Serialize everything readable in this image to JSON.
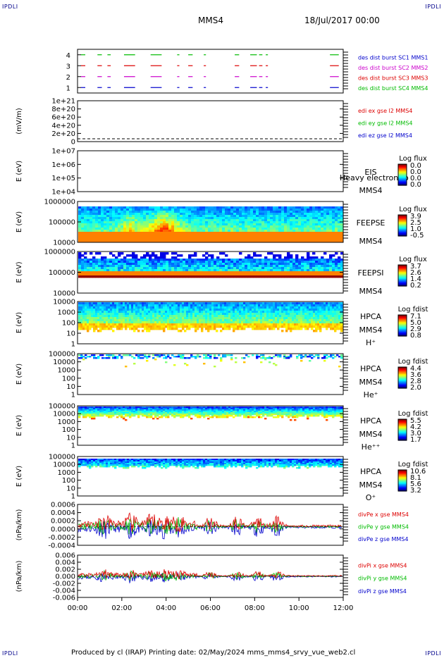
{
  "corner_label": "IPDLI",
  "title": "MMS4",
  "datetime": "18/Jul/2017 00:00",
  "footer": "Produced by cl (IRAP)   Printing date: 02/May/2024   mms_mms4_srvy_vue_web2.cl",
  "colors": {
    "red": "#dd0000",
    "green": "#00bb00",
    "blue": "#0000cc",
    "magenta": "#cc00cc"
  },
  "chart_data": [
    {
      "id": "burst",
      "type": "line",
      "yticks": [
        "1",
        "2",
        "3",
        "4"
      ],
      "ylim": [
        0.5,
        4.5
      ],
      "labels": [
        {
          "text": "des dist burst SC1 MMS1",
          "color": "#0000cc"
        },
        {
          "text": "des dist burst SC2 MMS2",
          "color": "#cc00cc"
        },
        {
          "text": "des dist burst SC3 MMS3",
          "color": "#dd0000"
        },
        {
          "text": "des dist burst SC4 MMS4",
          "color": "#00bb00"
        }
      ],
      "segments_hours": [
        [
          0.15,
          0.35
        ],
        [
          0.9,
          1.1
        ],
        [
          1.35,
          1.5
        ],
        [
          2.1,
          2.6
        ],
        [
          3.3,
          3.8
        ],
        [
          4.5,
          4.6
        ],
        [
          5.0,
          5.2
        ],
        [
          5.7,
          5.8
        ],
        [
          7.1,
          7.3
        ],
        [
          7.8,
          8.1
        ],
        [
          8.2,
          8.35
        ],
        [
          8.5,
          8.6
        ],
        [
          11.4,
          11.8
        ]
      ]
    },
    {
      "id": "edi",
      "type": "line",
      "ylabel": "(mV/m)",
      "yticks": [
        "0",
        "2e+20",
        "4e+20",
        "6e+20",
        "8e+20",
        "1e+21"
      ],
      "ylim": [
        0,
        1e+21
      ],
      "labels": [
        {
          "text": "edi ex gse l2 MMS4",
          "color": "#dd0000"
        },
        {
          "text": "edi ey gse l2 MMS4",
          "color": "#00bb00"
        },
        {
          "text": "edi ez gse l2 MMS4",
          "color": "#0000cc"
        }
      ]
    },
    {
      "id": "eis",
      "type": "heatmap",
      "ylabel": "E (eV)",
      "yticks": [
        "1e+04",
        "1e+05",
        "1e+06",
        "1e+07"
      ],
      "labels": [
        {
          "text": "EIS"
        },
        {
          "text": "MMS4"
        }
      ],
      "overlay": "Heavy electron to",
      "colorbar": {
        "title": "Log flux",
        "ticks": [
          "0.0",
          "0.0",
          "0.0",
          "0.0"
        ]
      }
    },
    {
      "id": "feepse",
      "type": "heatmap",
      "ylabel": "E (eV)",
      "yticks": [
        "10000",
        "100000",
        "1000000"
      ],
      "labels": [
        {
          "text": "FEEPSE"
        },
        {
          "text": "MMS4"
        }
      ],
      "colorbar": {
        "title": "Log flux",
        "ticks": [
          "3.9",
          "2.5",
          "1.0",
          "-0.5"
        ]
      }
    },
    {
      "id": "feepsi",
      "type": "heatmap",
      "ylabel": "E (eV)",
      "yticks": [
        "10000",
        "100000",
        "1000000"
      ],
      "labels": [
        {
          "text": "FEEPSI"
        },
        {
          "text": "MMS4"
        }
      ],
      "colorbar": {
        "title": "Log flux",
        "ticks": [
          "3.7",
          "2.6",
          "1.4",
          "0.2"
        ]
      }
    },
    {
      "id": "hpca_h",
      "type": "heatmap",
      "ylabel": "E (eV)",
      "yticks": [
        "1",
        "10",
        "100",
        "1000",
        "10000"
      ],
      "labels": [
        {
          "text": "HPCA"
        },
        {
          "text": "MMS4"
        },
        {
          "text": "H⁺"
        }
      ],
      "colorbar": {
        "title": "Log fdist",
        "ticks": [
          "7.1",
          "5.0",
          "2.9",
          "0.8"
        ]
      }
    },
    {
      "id": "hpca_he",
      "type": "heatmap",
      "ylabel": "E (eV)",
      "yticks": [
        "1",
        "10",
        "100",
        "1000",
        "10000",
        "100000"
      ],
      "labels": [
        {
          "text": "HPCA"
        },
        {
          "text": "MMS4"
        },
        {
          "text": "He⁺"
        }
      ],
      "colorbar": {
        "title": "Log fdist",
        "ticks": [
          "4.4",
          "3.6",
          "2.8",
          "2.0"
        ]
      }
    },
    {
      "id": "hpca_he2",
      "type": "heatmap",
      "ylabel": "E (eV)",
      "yticks": [
        "1",
        "10",
        "100",
        "1000",
        "10000",
        "100000"
      ],
      "labels": [
        {
          "text": "HPCA"
        },
        {
          "text": "MMS4"
        },
        {
          "text": "He⁺⁺"
        }
      ],
      "colorbar": {
        "title": "Log fdist",
        "ticks": [
          "5.5",
          "4.2",
          "3.0",
          "1.7"
        ]
      }
    },
    {
      "id": "hpca_o",
      "type": "heatmap",
      "ylabel": "E (eV)",
      "yticks": [
        "1",
        "10",
        "100",
        "1000",
        "10000",
        "100000"
      ],
      "labels": [
        {
          "text": "HPCA"
        },
        {
          "text": "MMS4"
        },
        {
          "text": "O⁺"
        }
      ],
      "colorbar": {
        "title": "Log fdist",
        "ticks": [
          "10.6",
          "8.1",
          "5.6",
          "3.2"
        ]
      }
    },
    {
      "id": "divpe",
      "type": "line",
      "ylabel": "(nPa/km)",
      "yticks": [
        "-0.0004",
        "-0.0002",
        "0.0000",
        "0.0002",
        "0.0004",
        "0.0006"
      ],
      "ylim": [
        -0.0005,
        0.0006
      ],
      "labels": [
        {
          "text": "divPe x gse MMS4",
          "color": "#dd0000"
        },
        {
          "text": "divPe y gse MMS4",
          "color": "#00bb00"
        },
        {
          "text": "divPe z gse MMS4",
          "color": "#0000cc"
        }
      ]
    },
    {
      "id": "divpi",
      "type": "line",
      "ylabel": "(nPa/km)",
      "yticks": [
        "-0.006",
        "-0.004",
        "-0.002",
        "0.000",
        "0.002",
        "0.004",
        "0.006"
      ],
      "ylim": [
        -0.007,
        0.007
      ],
      "labels": [
        {
          "text": "divPi x gse MMS4",
          "color": "#dd0000"
        },
        {
          "text": "divPi y gse MMS4",
          "color": "#00bb00"
        },
        {
          "text": "divPi z gse MMS4",
          "color": "#0000cc"
        }
      ]
    }
  ],
  "xaxis": {
    "ticks": [
      "00:00",
      "02:00",
      "04:00",
      "06:00",
      "08:00",
      "10:00",
      "12:00"
    ],
    "xlim_hours": [
      0,
      12
    ]
  }
}
